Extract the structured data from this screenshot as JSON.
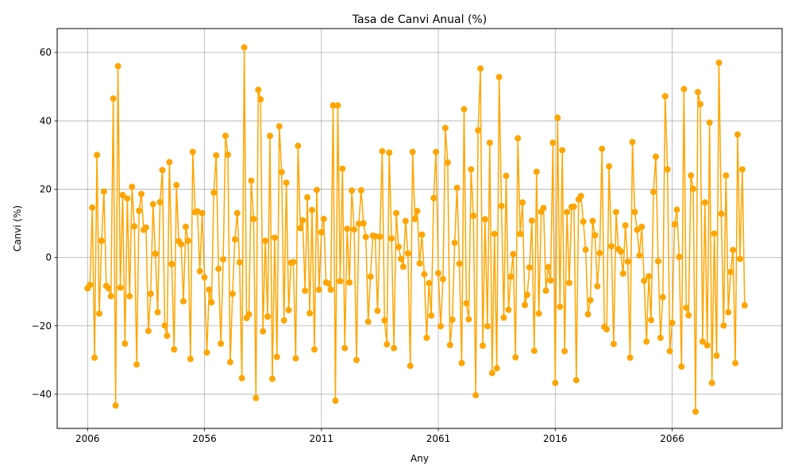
{
  "chart_data": {
    "type": "line",
    "title": "Tasa de Canvi Anual (%)",
    "xlabel": "Any",
    "ylabel": "Canvi (%)",
    "grid": true,
    "marker": "circle",
    "colors": {
      "series": "#ffa500",
      "grid": "#b0b0b0"
    },
    "x_tick_labels": [
      "2006",
      "2056",
      "2011",
      "2061",
      "2016",
      "2066"
    ],
    "y_ticks": [
      -40,
      -20,
      0,
      20,
      40,
      60
    ],
    "ylim": [
      -50,
      67
    ],
    "xlim": [
      -13,
      297
    ],
    "series": [
      {
        "values": [
          -9,
          -8,
          14.6,
          -29.3,
          30,
          -16.4,
          4.9,
          19.3,
          -8.3,
          -9,
          -11.3,
          46.5,
          -43.3,
          56,
          -8.8,
          18.3,
          -25.2,
          17.3,
          -11.3,
          20.7,
          9.1,
          -31.3,
          13.7,
          18.6,
          8.1,
          8.8,
          -21.5,
          -10.6,
          15.6,
          1.1,
          -16,
          16.2,
          25.6,
          -19.9,
          -22.9,
          27.9,
          -1.9,
          -26.9,
          21.2,
          4.8,
          3.9,
          -12.8,
          9,
          4.9,
          -29.7,
          30.9,
          13.3,
          13.5,
          -4,
          13,
          -5.8,
          -27.8,
          -9.4,
          -13.1,
          19,
          29.9,
          -3.3,
          -25.2,
          -0.5,
          35.6,
          30.1,
          -30.6,
          -10.6,
          5.3,
          13,
          -1.4,
          -35.3,
          61.5,
          -17.7,
          -16.6,
          22.5,
          11.3,
          -41.1,
          49.1,
          46.3,
          -21.6,
          4.9,
          -17.3,
          35.6,
          -35.5,
          5.8,
          -29.1,
          38.4,
          25,
          -18.4,
          21.9,
          -15.4,
          -1.5,
          -1.3,
          -29.5,
          32.7,
          8.6,
          10.9,
          -9.7,
          17.6,
          -16.3,
          13.9,
          -26.9,
          19.8,
          -9.4,
          7.4,
          11.3,
          -7.3,
          -7.6,
          -9.4,
          44.5,
          -41.9,
          44.5,
          -6.9,
          26,
          -26.5,
          8.4,
          -7.3,
          19.6,
          8.2,
          -30,
          9.9,
          19.7,
          10,
          6,
          -18.8,
          -5.6,
          6.4,
          6.2,
          -15.6,
          6.1,
          31.1,
          -18.4,
          -25.4,
          30.7,
          5.6,
          -26.5,
          13,
          3.1,
          -0.4,
          -2.7,
          10.7,
          1.2,
          -31.7,
          30.9,
          11.3,
          13.6,
          -1.7,
          6.7,
          -4.9,
          -23.5,
          -7.5,
          -17,
          17.4,
          30.9,
          -4.6,
          -20.1,
          -6.3,
          37.9,
          27.8,
          -25.6,
          -18.2,
          4.3,
          20.4,
          -1.8,
          -30.9,
          43.4,
          -13.4,
          -18.1,
          25.8,
          12.2,
          -40.3,
          37.2,
          55.3,
          -25.8,
          11.2,
          -20.1,
          33.6,
          -33.8,
          6.9,
          -32.4,
          52.8,
          15.1,
          -17.6,
          23.9,
          -15.3,
          -5.6,
          1,
          -29.2,
          34.9,
          6.9,
          16.1,
          -13.9,
          -10.9,
          -2.9,
          10.8,
          -27.3,
          25.1,
          -16.4,
          13.4,
          14.5,
          -9.7,
          -2.8,
          -6.7,
          33.6,
          -36.7,
          40.9,
          -14.4,
          31.4,
          -27.4,
          13.3,
          -7.4,
          14.8,
          14.9,
          -35.9,
          17,
          18,
          10.5,
          2.3,
          -16.6,
          -12.5,
          10.7,
          6.5,
          -8.4,
          1.3,
          31.8,
          -20.3,
          -21,
          26.7,
          3.3,
          -25.3,
          13.3,
          2.5,
          1.8,
          -4.7,
          9.4,
          -1.2,
          -29.3,
          33.8,
          13.3,
          8.1,
          0.6,
          9,
          -6.8,
          -24.6,
          -5.5,
          -18.3,
          19.2,
          29.5,
          -1.1,
          -23.5,
          -11.6,
          47.2,
          25.8,
          -27.4,
          -19.1,
          9.7,
          14,
          0.2,
          -31.9,
          49.3,
          -14.7,
          -16.9,
          24,
          20.1,
          -45.1,
          48.4,
          44.9,
          -24.6,
          16.1,
          -25.7,
          39.5,
          -36.7,
          7,
          -28.7,
          57,
          12.8,
          -19.9,
          24,
          -16,
          -4.2,
          2.2,
          -30.9,
          36,
          -0.4,
          25.8,
          -14
        ]
      }
    ]
  }
}
